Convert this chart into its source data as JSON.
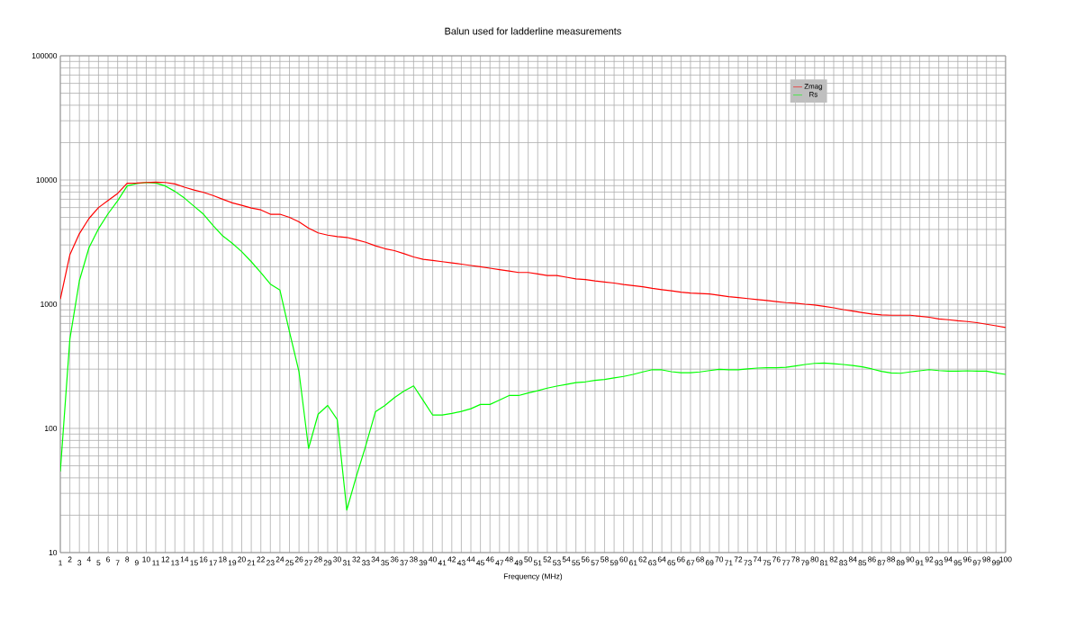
{
  "chart_data": {
    "type": "line",
    "title": "Balun used for ladderline measurements",
    "xlabel": "Frequency (MHz)",
    "categories": [
      "1",
      "2",
      "3",
      "4",
      "5",
      "6",
      "7",
      "8",
      "9",
      "10",
      "11",
      "12",
      "13",
      "14",
      "15",
      "16",
      "17",
      "18",
      "19",
      "20",
      "21",
      "22",
      "23",
      "24",
      "25",
      "26",
      "27",
      "28",
      "29",
      "30",
      "31",
      "32",
      "33",
      "34",
      "35",
      "36",
      "37",
      "38",
      "39",
      "40",
      "41",
      "42",
      "43",
      "44",
      "45",
      "46",
      "47",
      "48",
      "49",
      "50",
      "51",
      "52",
      "53",
      "54",
      "55",
      "56",
      "57",
      "58",
      "59",
      "60",
      "61",
      "62",
      "63",
      "64",
      "65",
      "66",
      "67",
      "68",
      "69",
      "70",
      "71",
      "72",
      "73",
      "74",
      "75",
      "76",
      "77",
      "78",
      "79",
      "80",
      "81",
      "82",
      "83",
      "84",
      "85",
      "86",
      "87",
      "88",
      "89",
      "90",
      "91",
      "92",
      "93",
      "94",
      "95",
      "96",
      "97",
      "98",
      "99",
      "100"
    ],
    "series": [
      {
        "name": "Zmag",
        "color": "#ff0000",
        "values": [
          1100,
          2500,
          3700,
          4900,
          6000,
          6850,
          7800,
          9400,
          9450,
          9550,
          9600,
          9550,
          9300,
          8750,
          8300,
          7950,
          7500,
          7000,
          6550,
          6250,
          5950,
          5750,
          5300,
          5300,
          5000,
          4600,
          4100,
          3750,
          3600,
          3500,
          3450,
          3300,
          3150,
          2950,
          2800,
          2700,
          2550,
          2400,
          2300,
          2250,
          2200,
          2150,
          2100,
          2050,
          2000,
          1950,
          1900,
          1850,
          1800,
          1800,
          1750,
          1700,
          1700,
          1650,
          1600,
          1580,
          1540,
          1510,
          1480,
          1440,
          1410,
          1380,
          1340,
          1310,
          1280,
          1250,
          1230,
          1220,
          1210,
          1180,
          1150,
          1130,
          1110,
          1090,
          1070,
          1050,
          1030,
          1020,
          1000,
          985,
          960,
          935,
          905,
          880,
          855,
          835,
          820,
          815,
          815,
          815,
          800,
          785,
          760,
          750,
          735,
          725,
          710,
          690,
          670,
          650
        ]
      },
      {
        "name": "Rs",
        "color": "#00ff00",
        "values": [
          45,
          525,
          1550,
          2850,
          4050,
          5350,
          6800,
          8950,
          9350,
          9550,
          9450,
          8950,
          8100,
          7150,
          6150,
          5300,
          4300,
          3550,
          3100,
          2650,
          2200,
          1800,
          1450,
          1300,
          600,
          285,
          69,
          130,
          153,
          118,
          22,
          41,
          73,
          136,
          153,
          177,
          200,
          220,
          168,
          128,
          128,
          132,
          137,
          144,
          156,
          156,
          169,
          184,
          184,
          193,
          201,
          211,
          219,
          226,
          234,
          237,
          244,
          248,
          255,
          262,
          272,
          285,
          297,
          296,
          286,
          281,
          281,
          285,
          292,
          299,
          296,
          296,
          301,
          306,
          308,
          308,
          310,
          318,
          327,
          334,
          336,
          332,
          327,
          321,
          313,
          301,
          288,
          280,
          278,
          285,
          291,
          297,
          292,
          289,
          289,
          291,
          289,
          289,
          280,
          272
        ]
      }
    ],
    "log": "y",
    "ylim": [
      10,
      100000
    ],
    "yticks": [
      10,
      100,
      1000,
      10000,
      100000
    ],
    "grid": true,
    "legend": "top right",
    "marker": "none",
    "line_style": "solid"
  }
}
